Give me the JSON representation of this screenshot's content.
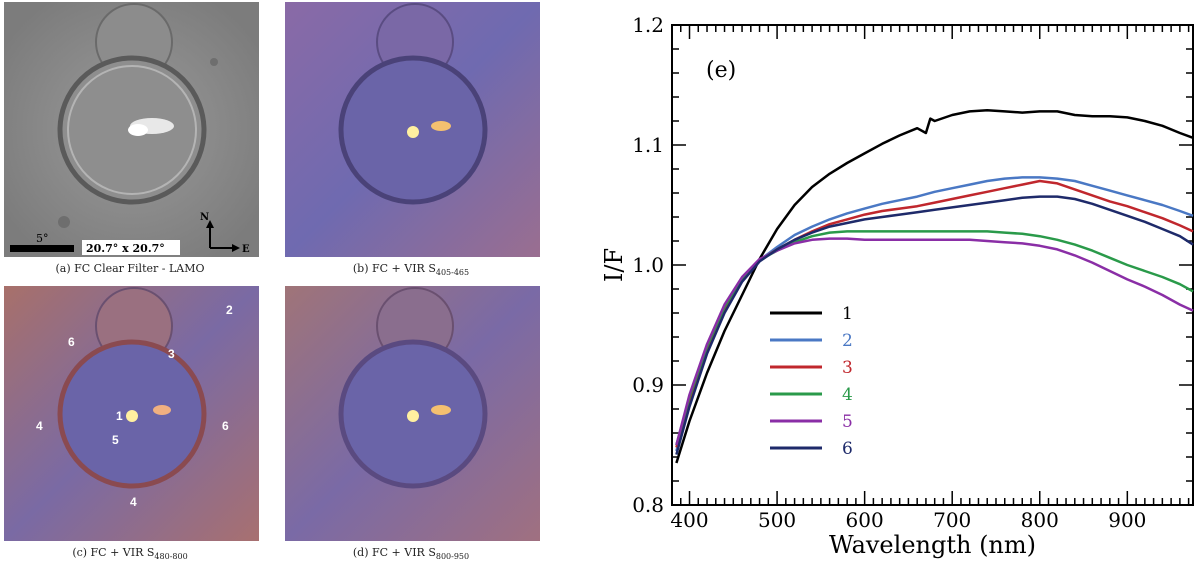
{
  "panels": {
    "a": {
      "caption": "(a) FC Clear Filter - LAMO",
      "scale_label": "5°",
      "size_label": "20.7° x 20.7°",
      "north": "N",
      "east": "E"
    },
    "b": {
      "caption_main": "(b) FC + VIR S",
      "caption_sub": "405-465"
    },
    "c": {
      "caption_main": "(c) FC + VIR S",
      "caption_sub": "480-800",
      "markers": [
        "2",
        "6",
        "3",
        "4",
        "1",
        "6",
        "5",
        "4"
      ]
    },
    "d": {
      "caption_main": "(d) FC + VIR S",
      "caption_sub": "800-950"
    }
  },
  "colors": {
    "s1": "#000000",
    "s2": "#4a78c4",
    "s3": "#c0272d",
    "s4": "#2a9a4a",
    "s5": "#8a2ea6",
    "s6": "#1e2a6a"
  },
  "chart_data": {
    "type": "line",
    "panel_label": "(e)",
    "xlabel": "Wavelength (nm)",
    "ylabel": "I/F",
    "xlim": [
      380,
      975
    ],
    "ylim": [
      0.8,
      1.2
    ],
    "xticks": [
      400,
      500,
      600,
      700,
      800,
      900
    ],
    "yticks": [
      0.8,
      0.9,
      1.0,
      1.1,
      1.2
    ],
    "ytick_labels": [
      "0.8",
      "0.9",
      "1.0",
      "1.1",
      "1.2"
    ],
    "legend_position": "lower-left",
    "series": [
      {
        "name": "1",
        "x": [
          385,
          400,
          420,
          440,
          460,
          480,
          500,
          520,
          540,
          560,
          580,
          600,
          620,
          640,
          660,
          670,
          675,
          680,
          700,
          720,
          740,
          760,
          780,
          800,
          820,
          840,
          860,
          880,
          900,
          920,
          940,
          960,
          975
        ],
        "y": [
          0.835,
          0.87,
          0.91,
          0.945,
          0.975,
          1.005,
          1.03,
          1.05,
          1.065,
          1.076,
          1.085,
          1.093,
          1.101,
          1.108,
          1.114,
          1.11,
          1.122,
          1.12,
          1.125,
          1.128,
          1.129,
          1.128,
          1.127,
          1.128,
          1.128,
          1.125,
          1.124,
          1.124,
          1.123,
          1.12,
          1.116,
          1.11,
          1.106
        ]
      },
      {
        "name": "2",
        "x": [
          385,
          400,
          420,
          440,
          460,
          480,
          500,
          520,
          540,
          560,
          580,
          600,
          620,
          640,
          660,
          680,
          700,
          720,
          740,
          760,
          780,
          800,
          820,
          840,
          860,
          880,
          900,
          920,
          940,
          960,
          975
        ],
        "y": [
          0.845,
          0.885,
          0.928,
          0.962,
          0.988,
          1.004,
          1.015,
          1.025,
          1.032,
          1.038,
          1.043,
          1.047,
          1.051,
          1.054,
          1.057,
          1.061,
          1.064,
          1.067,
          1.07,
          1.072,
          1.073,
          1.073,
          1.072,
          1.07,
          1.066,
          1.062,
          1.058,
          1.054,
          1.05,
          1.045,
          1.041
        ]
      },
      {
        "name": "3",
        "x": [
          385,
          400,
          420,
          440,
          460,
          480,
          500,
          520,
          540,
          560,
          580,
          600,
          620,
          640,
          660,
          680,
          700,
          720,
          740,
          760,
          780,
          800,
          820,
          840,
          860,
          880,
          900,
          920,
          940,
          960,
          975
        ],
        "y": [
          0.848,
          0.888,
          0.93,
          0.963,
          0.988,
          1.004,
          1.013,
          1.021,
          1.028,
          1.034,
          1.038,
          1.042,
          1.045,
          1.047,
          1.049,
          1.052,
          1.055,
          1.058,
          1.061,
          1.064,
          1.067,
          1.07,
          1.068,
          1.063,
          1.058,
          1.053,
          1.049,
          1.044,
          1.039,
          1.033,
          1.028
        ]
      },
      {
        "name": "4",
        "x": [
          385,
          400,
          420,
          440,
          460,
          480,
          500,
          520,
          540,
          560,
          580,
          600,
          620,
          640,
          660,
          680,
          700,
          720,
          740,
          760,
          780,
          800,
          820,
          840,
          860,
          880,
          900,
          920,
          940,
          960,
          975
        ],
        "y": [
          0.85,
          0.89,
          0.932,
          0.965,
          0.989,
          1.004,
          1.012,
          1.019,
          1.024,
          1.027,
          1.028,
          1.028,
          1.028,
          1.028,
          1.028,
          1.028,
          1.028,
          1.028,
          1.028,
          1.027,
          1.026,
          1.024,
          1.021,
          1.017,
          1.012,
          1.006,
          1.0,
          0.995,
          0.99,
          0.984,
          0.978
        ]
      },
      {
        "name": "5",
        "x": [
          385,
          400,
          420,
          440,
          460,
          480,
          500,
          520,
          540,
          560,
          580,
          600,
          620,
          640,
          660,
          680,
          700,
          720,
          740,
          760,
          780,
          800,
          820,
          840,
          860,
          880,
          900,
          920,
          940,
          960,
          975
        ],
        "y": [
          0.85,
          0.892,
          0.934,
          0.967,
          0.99,
          1.005,
          1.012,
          1.018,
          1.021,
          1.022,
          1.022,
          1.021,
          1.021,
          1.021,
          1.021,
          1.021,
          1.021,
          1.021,
          1.02,
          1.019,
          1.018,
          1.016,
          1.013,
          1.008,
          1.002,
          0.995,
          0.988,
          0.982,
          0.975,
          0.967,
          0.962
        ]
      },
      {
        "name": "6",
        "x": [
          385,
          400,
          420,
          440,
          460,
          480,
          500,
          520,
          540,
          560,
          580,
          600,
          620,
          640,
          660,
          680,
          700,
          720,
          740,
          760,
          780,
          800,
          820,
          840,
          860,
          880,
          900,
          920,
          940,
          960,
          975
        ],
        "y": [
          0.842,
          0.882,
          0.926,
          0.96,
          0.986,
          1.003,
          1.013,
          1.021,
          1.027,
          1.032,
          1.035,
          1.038,
          1.04,
          1.042,
          1.044,
          1.046,
          1.048,
          1.05,
          1.052,
          1.054,
          1.056,
          1.057,
          1.057,
          1.055,
          1.051,
          1.046,
          1.041,
          1.036,
          1.03,
          1.024,
          1.017
        ]
      }
    ]
  }
}
